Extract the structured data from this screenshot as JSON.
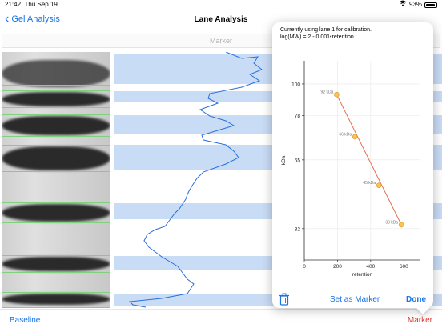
{
  "status": {
    "time": "21:42",
    "date": "Thu Sep 19",
    "battery": "93%"
  },
  "nav": {
    "back_label": "Gel Analysis",
    "title": "Lane Analysis"
  },
  "marker_field": {
    "label": "Marker"
  },
  "calibration": {
    "line1": "Currently using lane 1 for calibration.",
    "line2": "log(MW) = 2 - 0.001•retention"
  },
  "chart_data": {
    "type": "scatter",
    "xlabel": "retention",
    "ylabel": "kDa",
    "x_ticks": [
      "0",
      "200",
      "400",
      "600"
    ],
    "y_ticks": [
      "100",
      "78",
      "55",
      "32"
    ],
    "xlim": [
      0,
      700
    ],
    "yscale": "log",
    "series": [
      {
        "points": [
          {
            "x": 195,
            "y": 92,
            "label": "92 kDa"
          },
          {
            "x": 305,
            "y": 66,
            "label": "66 kDa"
          },
          {
            "x": 450,
            "y": 45,
            "label": "45 kDa"
          },
          {
            "x": 585,
            "y": 33,
            "label": "33 kDa"
          }
        ]
      }
    ],
    "fit_line": {
      "x0": 195,
      "y0": 92,
      "x1": 585,
      "y1": 33
    },
    "grid": true
  },
  "popover_actions": {
    "set_marker": "Set as Marker",
    "done": "Done",
    "trash_icon": "trash-icon"
  },
  "bottom_bar": {
    "baseline": "Baseline",
    "marker": "Marker"
  },
  "colors": {
    "accent": "#1a73e8",
    "destructive": "#e03c31",
    "band_highlight": "#c9dcf5",
    "profile_line": "#2a6fdb",
    "fit_line": "#e07055",
    "point_fill": "#f7c35a"
  }
}
